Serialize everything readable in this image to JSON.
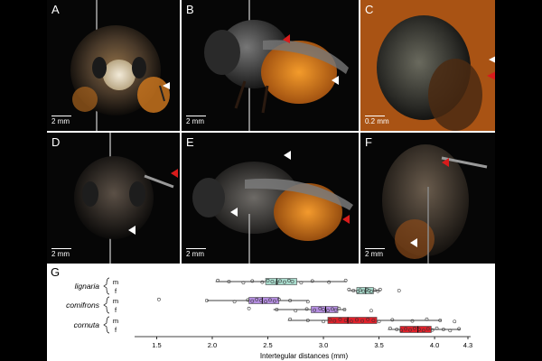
{
  "panels": [
    {
      "letter": "A",
      "scale": "2 mm"
    },
    {
      "letter": "B",
      "scale": "2 mm"
    },
    {
      "letter": "C",
      "scale": "0.2 mm"
    },
    {
      "letter": "D",
      "scale": "2 mm"
    },
    {
      "letter": "E",
      "scale": "2 mm"
    },
    {
      "letter": "F",
      "scale": "2 mm"
    }
  ],
  "panel_g_letter": "G",
  "colors": {
    "lignaria_m": "#a9dccd",
    "comifrons_m": "#b48de0",
    "cornuta_m": "#e0202a",
    "arrow_red": "#d81b1b",
    "arrow_white": "#ffffff"
  },
  "chart_data": {
    "type": "box",
    "xlabel": "Intertegular distances (mm)",
    "xlim": [
      1.35,
      4.3
    ],
    "xticks": [
      1.5,
      2.0,
      2.5,
      3.0,
      3.5,
      4.0,
      4.3
    ],
    "groups": [
      {
        "species": "lignaria",
        "sex": "m",
        "min": 2.03,
        "q1": 2.48,
        "median": 2.58,
        "q3": 2.76,
        "max": 3.21,
        "color": "#a9dccd",
        "points": [
          2.05,
          2.15,
          2.28,
          2.36,
          2.45,
          2.5,
          2.54,
          2.58,
          2.61,
          2.65,
          2.69,
          2.72,
          2.8,
          2.9,
          3.05,
          3.2
        ]
      },
      {
        "species": "lignaria",
        "sex": "f",
        "min": 3.22,
        "q1": 3.3,
        "median": 3.38,
        "q3": 3.45,
        "max": 3.52,
        "color": "#a9dccd",
        "points": [
          3.23,
          3.27,
          3.31,
          3.33,
          3.36,
          3.39,
          3.41,
          3.43,
          3.46,
          3.49,
          3.51,
          3.68
        ]
      },
      {
        "species": "comifrons",
        "sex": "m",
        "min": 1.95,
        "q1": 2.33,
        "median": 2.45,
        "q3": 2.6,
        "max": 2.87,
        "color": "#b48de0",
        "points": [
          1.52,
          1.95,
          2.2,
          2.32,
          2.36,
          2.4,
          2.44,
          2.48,
          2.52,
          2.56,
          2.6,
          2.7,
          2.86
        ]
      },
      {
        "species": "comifrons",
        "sex": "f",
        "min": 2.55,
        "q1": 2.89,
        "median": 3.02,
        "q3": 3.13,
        "max": 3.2,
        "color": "#b48de0",
        "points": [
          2.33,
          2.58,
          2.75,
          2.85,
          2.92,
          2.97,
          3.0,
          3.04,
          3.08,
          3.11,
          3.14,
          3.19,
          3.43
        ]
      },
      {
        "species": "cornuta",
        "sex": "m",
        "min": 2.68,
        "q1": 3.04,
        "median": 3.22,
        "q3": 3.48,
        "max": 4.06,
        "color": "#e0202a",
        "points": [
          2.7,
          2.86,
          3.0,
          3.06,
          3.1,
          3.15,
          3.2,
          3.25,
          3.3,
          3.35,
          3.4,
          3.45,
          3.5,
          3.62,
          3.8,
          3.93,
          4.05,
          4.18
        ]
      },
      {
        "species": "cornuta",
        "sex": "f",
        "min": 3.58,
        "q1": 3.69,
        "median": 3.85,
        "q3": 3.97,
        "max": 4.23,
        "color": "#e0202a",
        "points": [
          3.6,
          3.66,
          3.7,
          3.74,
          3.78,
          3.82,
          3.86,
          3.9,
          3.94,
          3.98,
          4.02,
          4.08,
          4.14,
          4.22
        ]
      }
    ],
    "species_labels": [
      "lignaria",
      "comifrons",
      "cornuta"
    ],
    "sex_labels": [
      "m",
      "f"
    ]
  }
}
